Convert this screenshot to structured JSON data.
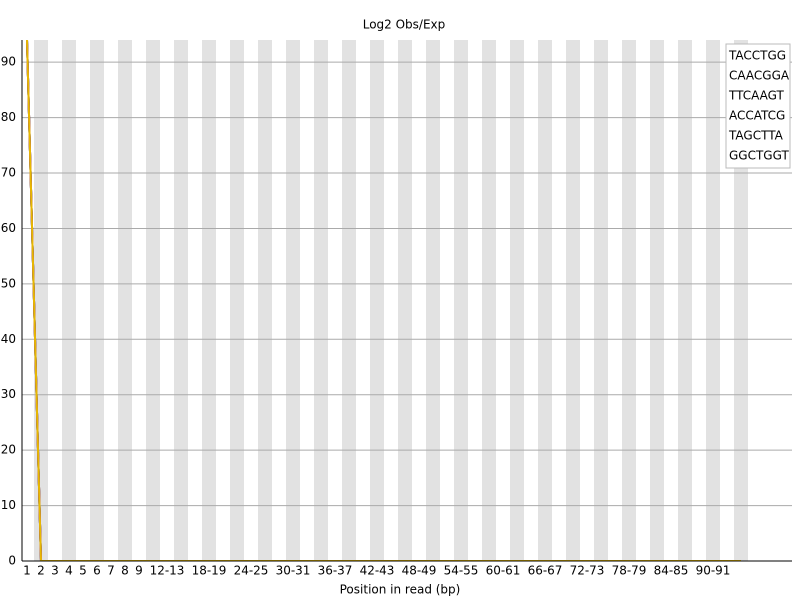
{
  "chart_data": {
    "type": "line",
    "title": "Log2 Obs/Exp",
    "x_label": "Position in read (bp)",
    "categories": [
      "1",
      "2",
      "3",
      "4",
      "5",
      "6",
      "7",
      "8",
      "9",
      null,
      "12-13",
      null,
      null,
      "18-19",
      null,
      null,
      "24-25",
      null,
      null,
      "30-31",
      null,
      null,
      "36-37",
      null,
      null,
      "42-43",
      null,
      null,
      "48-49",
      null,
      null,
      "54-55",
      null,
      null,
      "60-61",
      null,
      null,
      "66-67",
      null,
      null,
      "72-73",
      null,
      null,
      "78-79",
      null,
      null,
      "84-85",
      null,
      null,
      "90-91",
      null,
      null
    ],
    "series": [
      {
        "name": "TACCTGG",
        "color": "#cc0000",
        "values": [
          94,
          0,
          0,
          0,
          0,
          0,
          0,
          0,
          0,
          0,
          0,
          0,
          0,
          0,
          0,
          0,
          0,
          0,
          0,
          0,
          0,
          0,
          0,
          0,
          0,
          0,
          0,
          0,
          0,
          0,
          0,
          0,
          0,
          0,
          0,
          0,
          0,
          0,
          0,
          0,
          0,
          0,
          0,
          0,
          0,
          0,
          0,
          0,
          0,
          0,
          0,
          0
        ]
      },
      {
        "name": "CAACGGA",
        "color": "#000099",
        "values": [
          94,
          0,
          0,
          0,
          0,
          0,
          0,
          0,
          0,
          0,
          0,
          0,
          0,
          0,
          0,
          0,
          0,
          0,
          0,
          0,
          0,
          0,
          0,
          0,
          0,
          0,
          0,
          0,
          0,
          0,
          0,
          0,
          0,
          0,
          0,
          0,
          0,
          0,
          0,
          0,
          0,
          0,
          0,
          0,
          0,
          0,
          0,
          0,
          0,
          0,
          0,
          0
        ]
      },
      {
        "name": "TTCAAGT",
        "color": "#00aa00",
        "values": [
          94,
          0,
          0,
          0,
          0,
          0,
          0,
          0,
          0,
          0,
          0,
          0,
          0,
          0,
          0,
          0,
          0,
          0,
          0,
          0,
          0,
          0,
          0,
          0,
          0,
          0,
          0,
          0,
          0,
          0,
          0,
          0,
          0,
          0,
          0,
          0,
          0,
          0,
          0,
          0,
          0,
          0,
          0,
          0,
          0,
          0,
          0,
          0,
          0,
          0,
          0,
          0
        ]
      },
      {
        "name": "ACCATCG",
        "color": "#555555",
        "values": [
          94,
          0,
          0,
          0,
          0,
          0,
          0,
          0,
          0,
          0,
          0,
          0,
          0,
          0,
          0,
          0,
          0,
          0,
          0,
          0,
          0,
          0,
          0,
          0,
          0,
          0,
          0,
          0,
          0,
          0,
          0,
          0,
          0,
          0,
          0,
          0,
          0,
          0,
          0,
          0,
          0,
          0,
          0,
          0,
          0,
          0,
          0,
          0,
          0,
          0,
          0,
          0
        ]
      },
      {
        "name": "TAGCTTA",
        "color": "#cc00cc",
        "values": [
          94,
          0,
          0,
          0,
          0,
          0,
          0,
          0,
          0,
          0,
          0,
          0,
          0,
          0,
          0,
          0,
          0,
          0,
          0,
          0,
          0,
          0,
          0,
          0,
          0,
          0,
          0,
          0,
          0,
          0,
          0,
          0,
          0,
          0,
          0,
          0,
          0,
          0,
          0,
          0,
          0,
          0,
          0,
          0,
          0,
          0,
          0,
          0,
          0,
          0,
          0,
          0
        ]
      },
      {
        "name": "GGCTGGT",
        "color": "#e6b800",
        "values": [
          94,
          0,
          0,
          0,
          0,
          0,
          0,
          0,
          0,
          0,
          0,
          0,
          0,
          0,
          0,
          0,
          0,
          0,
          0,
          0,
          0,
          0,
          0,
          0,
          0,
          0,
          0,
          0,
          0,
          0,
          0,
          0,
          0,
          0,
          0,
          0,
          0,
          0,
          0,
          0,
          0,
          0,
          0,
          0,
          0,
          0,
          0,
          0,
          0,
          0,
          0,
          0
        ]
      }
    ],
    "ylim": [
      0,
      94
    ],
    "yticks": [
      0,
      10,
      20,
      30,
      40,
      50,
      60,
      70,
      80,
      90
    ],
    "grid": true,
    "legend": "top-right"
  }
}
